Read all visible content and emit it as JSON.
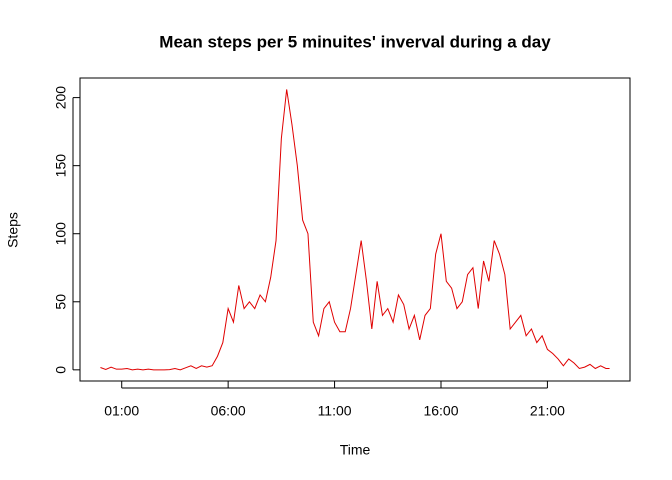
{
  "chart_data": {
    "type": "line",
    "title": "Mean steps per 5 minuites' inverval during a day",
    "x_label": "Time",
    "y_label": "Steps",
    "x": [
      0,
      0.25,
      0.5,
      0.75,
      1,
      1.25,
      1.5,
      1.75,
      2,
      2.25,
      2.5,
      2.75,
      3,
      3.25,
      3.5,
      3.75,
      4,
      4.25,
      4.5,
      4.75,
      5,
      5.25,
      5.5,
      5.75,
      6,
      6.25,
      6.5,
      6.75,
      7,
      7.25,
      7.5,
      7.75,
      8,
      8.25,
      8.5,
      8.75,
      9,
      9.25,
      9.5,
      9.75,
      10,
      10.25,
      10.5,
      10.75,
      11,
      11.25,
      11.5,
      11.75,
      12,
      12.25,
      12.5,
      12.75,
      13,
      13.25,
      13.5,
      13.75,
      14,
      14.25,
      14.5,
      14.75,
      15,
      15.25,
      15.5,
      15.75,
      16,
      16.25,
      16.5,
      16.75,
      17,
      17.25,
      17.5,
      17.75,
      18,
      18.25,
      18.5,
      18.75,
      19,
      19.25,
      19.5,
      19.75,
      20,
      20.25,
      20.5,
      20.75,
      21,
      21.25,
      21.5,
      21.75,
      22,
      22.25,
      22.5,
      22.75,
      23,
      23.25,
      23.5,
      23.75,
      23.92
    ],
    "series": [
      {
        "name": "Steps",
        "color": "#e00000",
        "values": [
          1.7,
          0.3,
          2,
          0.5,
          0.5,
          1,
          0,
          0.5,
          0,
          0.5,
          0,
          0,
          0,
          0.2,
          1,
          0,
          1.5,
          3,
          1,
          3,
          2,
          3,
          10,
          20,
          45,
          35,
          62,
          45,
          50,
          45,
          55,
          50,
          68,
          95,
          170,
          206,
          180,
          150,
          110,
          100,
          35,
          25,
          45,
          50,
          35,
          28,
          28,
          45,
          70,
          95,
          65,
          30,
          65,
          40,
          45,
          35,
          55,
          48,
          30,
          40,
          22,
          40,
          45,
          85,
          100,
          65,
          60,
          45,
          50,
          70,
          75,
          45,
          80,
          65,
          95,
          85,
          70,
          30,
          35,
          40,
          25,
          30,
          20,
          25,
          15,
          12,
          8,
          3,
          8,
          5,
          1,
          2,
          4,
          1,
          3,
          1,
          1
        ]
      }
    ],
    "xlim": [
      -0.96,
      24.88
    ],
    "xticks": [
      {
        "value": 1,
        "label": "01:00"
      },
      {
        "value": 6,
        "label": "06:00"
      },
      {
        "value": 11,
        "label": "11:00"
      },
      {
        "value": 16,
        "label": "16:00"
      },
      {
        "value": 21,
        "label": "21:00"
      }
    ],
    "ylim": [
      -8.2,
      214.4
    ],
    "yticks": [
      0,
      50,
      100,
      150,
      200
    ]
  }
}
